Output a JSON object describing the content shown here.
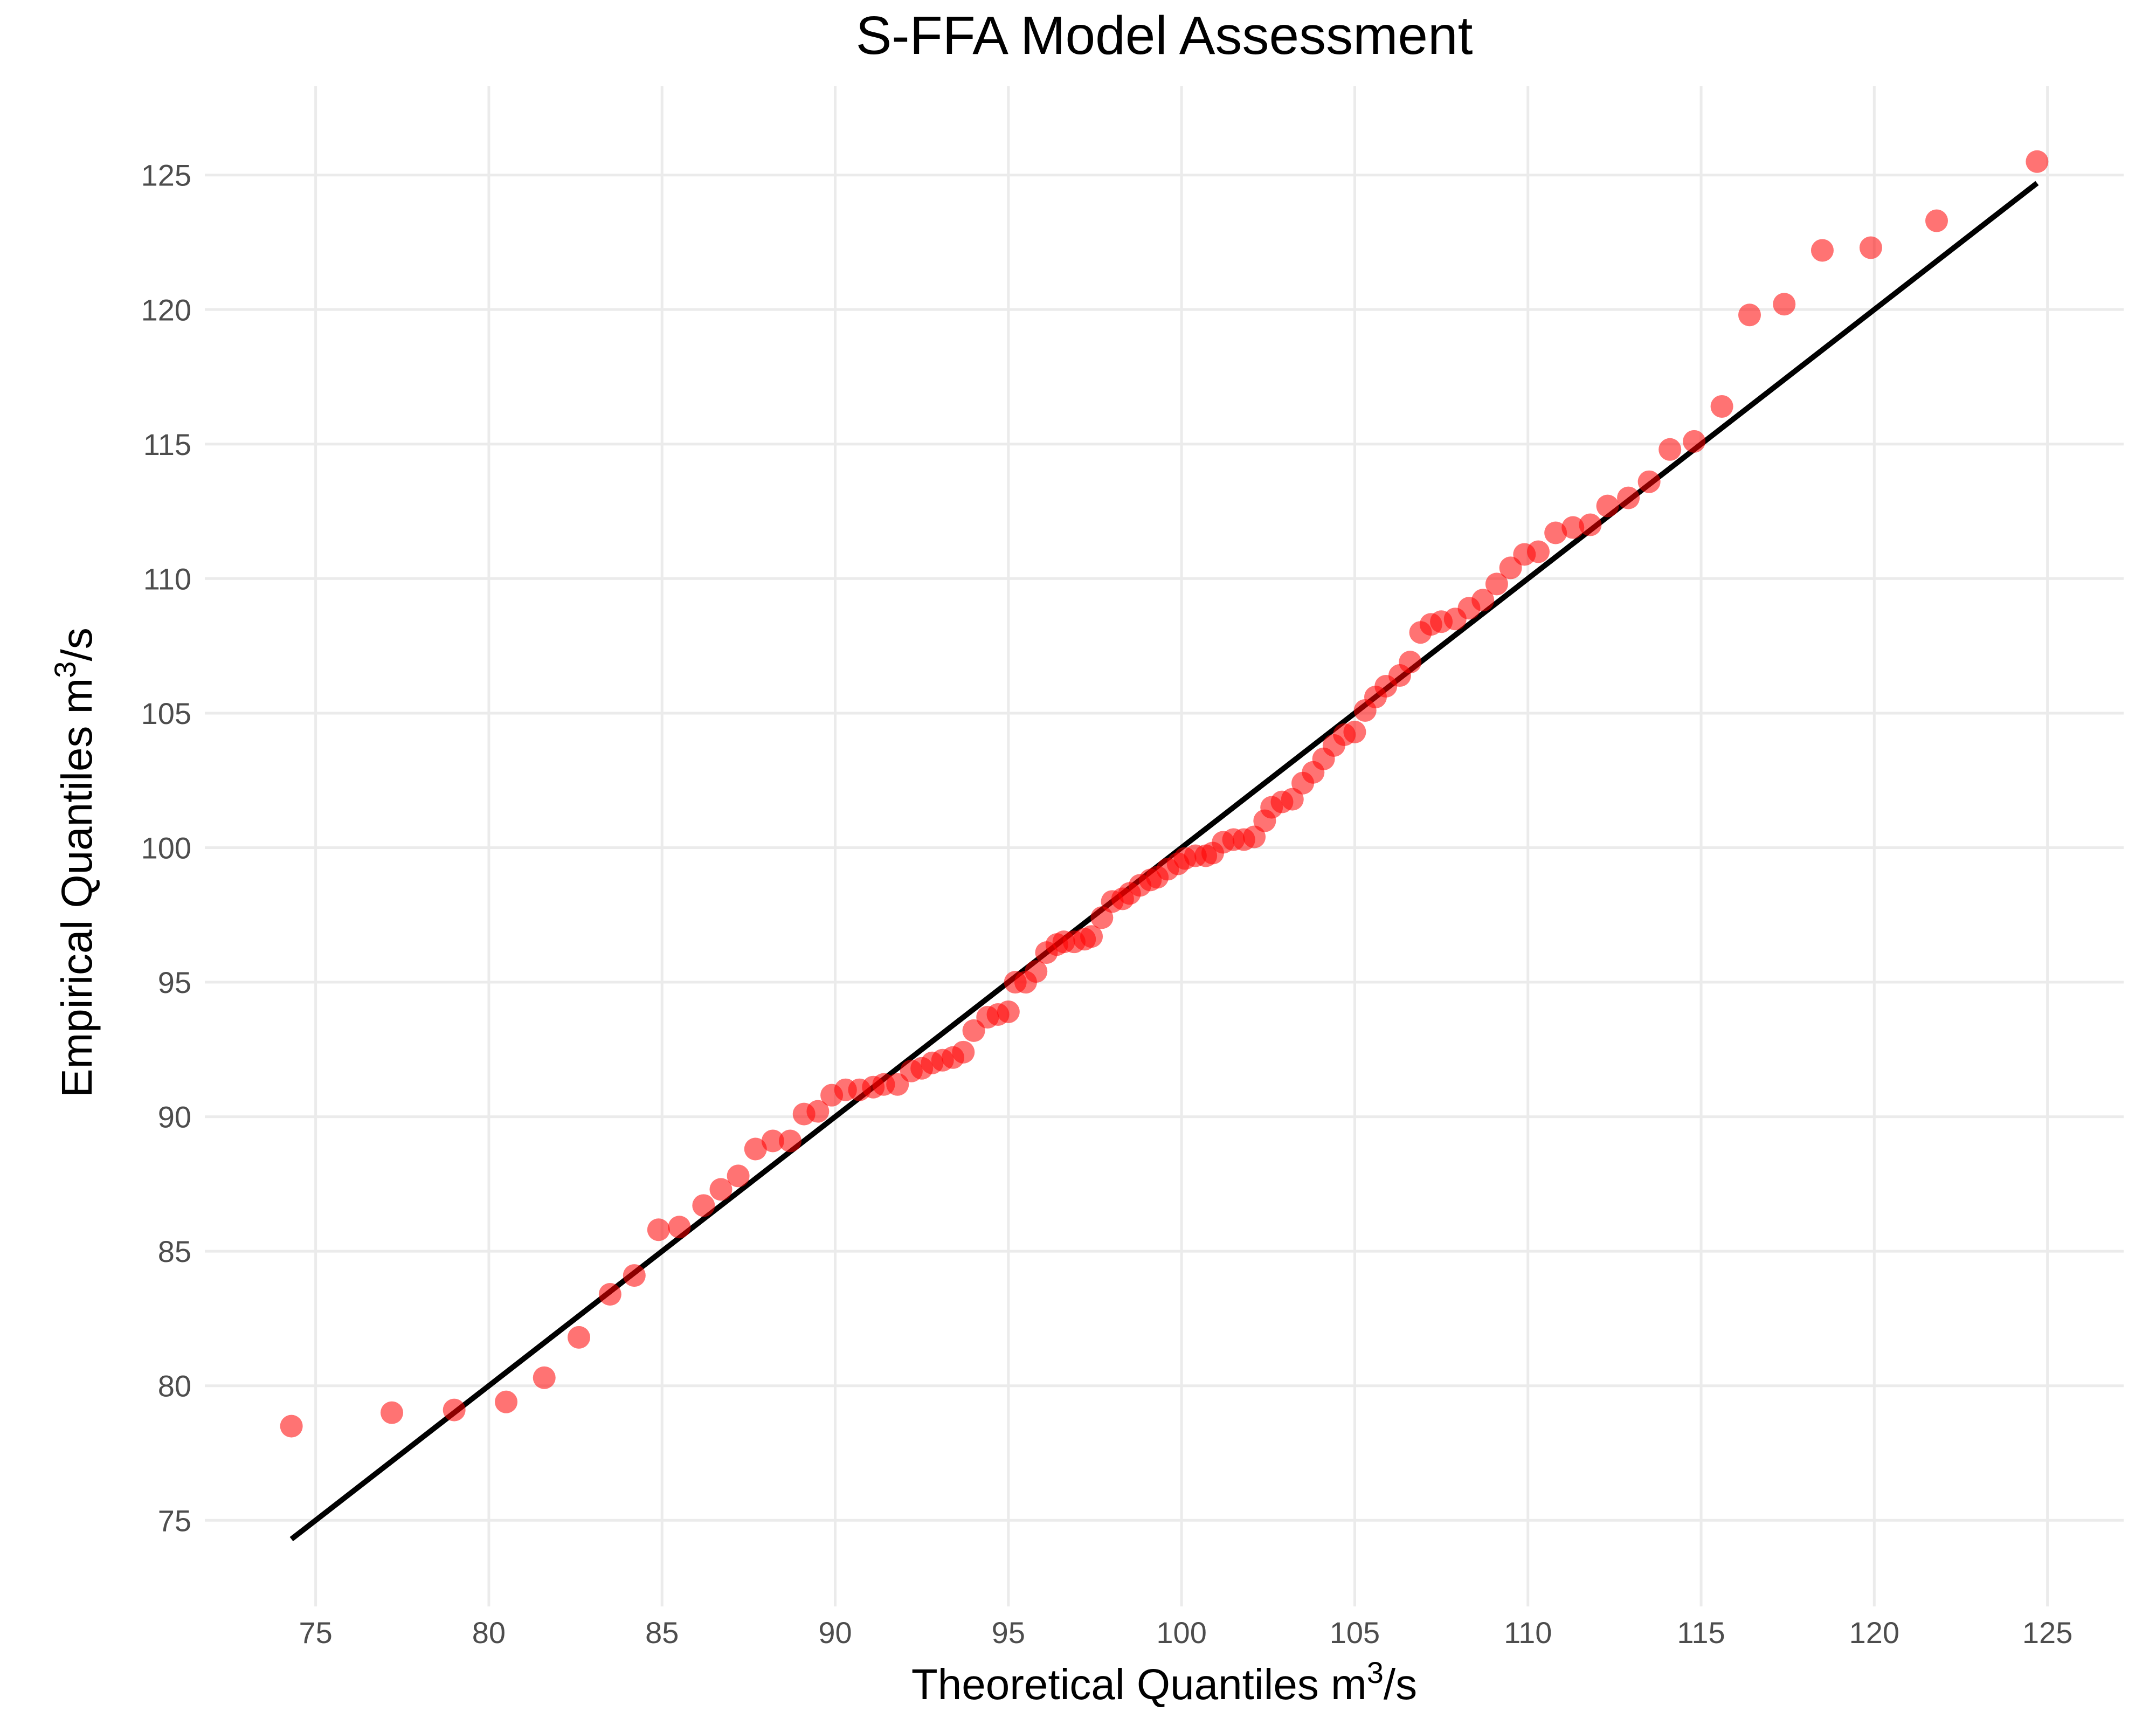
{
  "chart_data": {
    "type": "scatter",
    "title": "S-FFA Model Assessment",
    "xlabel": {
      "prefix": "Theoretical Quantiles m",
      "sup": "3",
      "suffix": "/s"
    },
    "ylabel": {
      "prefix": "Empirical Quantiles m",
      "sup": "3",
      "suffix": "/s"
    },
    "xlim": [
      71.8,
      127.2
    ],
    "ylim": [
      71.8,
      128.3
    ],
    "xticks": [
      75,
      80,
      85,
      90,
      95,
      100,
      105,
      110,
      115,
      120,
      125
    ],
    "yticks": [
      75,
      80,
      85,
      90,
      95,
      100,
      105,
      110,
      115,
      120,
      125
    ],
    "grid": true,
    "legend": "none",
    "point_color": "#ff0000",
    "line_color": "#000000",
    "reference_line": {
      "x": [
        74.3,
        124.7
      ],
      "y": [
        74.3,
        124.7
      ]
    },
    "points": {
      "x": [
        74.3,
        77.2,
        79.0,
        80.5,
        81.6,
        82.6,
        83.5,
        84.2,
        84.9,
        85.5,
        86.2,
        86.7,
        87.2,
        87.7,
        88.2,
        88.7,
        89.1,
        89.5,
        89.9,
        90.3,
        90.7,
        91.1,
        91.4,
        91.8,
        92.2,
        92.5,
        92.8,
        93.1,
        93.4,
        93.7,
        94.0,
        94.4,
        94.7,
        95.0,
        95.2,
        95.5,
        95.8,
        96.1,
        96.4,
        96.6,
        96.9,
        97.2,
        97.4,
        97.7,
        98.0,
        98.3,
        98.5,
        98.8,
        99.1,
        99.3,
        99.6,
        99.9,
        100.1,
        100.4,
        100.7,
        100.9,
        101.2,
        101.5,
        101.8,
        102.1,
        102.4,
        102.6,
        102.9,
        103.2,
        103.5,
        103.8,
        104.1,
        104.4,
        104.7,
        105.0,
        105.3,
        105.6,
        105.9,
        106.3,
        106.6,
        106.9,
        107.2,
        107.5,
        107.9,
        108.3,
        108.7,
        109.1,
        109.5,
        109.9,
        110.3,
        110.8,
        111.3,
        111.8,
        112.3,
        112.9,
        113.5,
        114.1,
        114.8,
        115.6,
        116.4,
        117.4,
        118.5,
        119.9,
        121.8,
        124.7
      ],
      "y": [
        78.5,
        79.0,
        79.1,
        79.4,
        80.3,
        81.8,
        83.4,
        84.1,
        85.8,
        85.9,
        86.7,
        87.3,
        87.8,
        88.8,
        89.1,
        89.1,
        90.1,
        90.2,
        90.8,
        91.0,
        91.0,
        91.1,
        91.2,
        91.2,
        91.7,
        91.8,
        92.0,
        92.1,
        92.2,
        92.4,
        93.2,
        93.7,
        93.8,
        93.9,
        95.0,
        95.0,
        95.4,
        96.1,
        96.4,
        96.5,
        96.5,
        96.6,
        96.7,
        97.4,
        98.0,
        98.1,
        98.3,
        98.6,
        98.8,
        98.9,
        99.2,
        99.4,
        99.6,
        99.7,
        99.7,
        99.8,
        100.2,
        100.3,
        100.3,
        100.4,
        101.0,
        101.5,
        101.7,
        101.8,
        102.4,
        102.8,
        103.3,
        103.8,
        104.2,
        104.3,
        105.1,
        105.6,
        106.0,
        106.4,
        106.9,
        108.0,
        108.3,
        108.4,
        108.5,
        108.9,
        109.2,
        109.8,
        110.4,
        110.9,
        111.0,
        111.7,
        111.9,
        112.0,
        112.7,
        113.0,
        113.6,
        114.8,
        115.1,
        116.4,
        119.8,
        120.2,
        122.2,
        122.3,
        123.3,
        125.5
      ]
    }
  }
}
